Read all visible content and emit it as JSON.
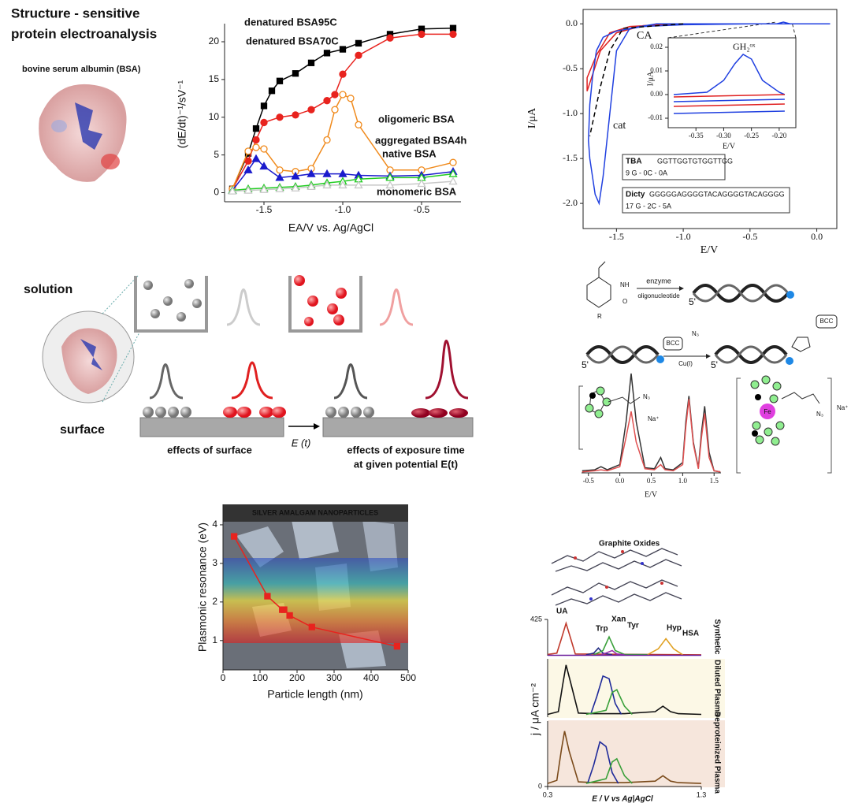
{
  "header": {
    "title_lines": [
      "Structure - sensitive",
      "protein electroanalysis"
    ],
    "subtitle": "bovine serum albumin (BSA)"
  },
  "scheme": {
    "solution": "solution",
    "surface": "surface",
    "caption_left": "effects of surface",
    "potential": "E (t)",
    "caption_right_1": "effects of exposure time",
    "caption_right_2": "at given potential E(t)"
  },
  "reaction": {
    "enzyme": "enzyme",
    "oligonucleotide": "oligonucleotide",
    "reagent": "BCC",
    "azide": "N₃",
    "catalyst": "Cu(I)",
    "counterion": "Na⁺",
    "metal": "Fe",
    "substituent": "R",
    "amine": "NH",
    "oxygen": "O",
    "five_prime": "5'"
  },
  "figure_labels": {
    "graphite_title": "Graphite Oxides"
  },
  "chart_data": [
    {
      "type": "line",
      "xlabel": "EA/V  vs. Ag/AgCl",
      "ylabel": "(dE/dt)⁻¹/sV⁻¹",
      "xlim": [
        -1.75,
        -0.25
      ],
      "ylim": [
        -1.2,
        22.4
      ],
      "xticks": [
        -1.5,
        {
          "value": -1,
          "label": "-1.0"
        },
        -0.5
      ],
      "yticks": [
        0,
        5,
        10,
        15,
        20
      ],
      "series": [
        {
          "name": "denatured BSA95C",
          "color": "#000000",
          "marker": "square",
          "filled": true,
          "x": [
            -1.7,
            -1.6,
            -1.55,
            -1.5,
            -1.45,
            -1.4,
            -1.3,
            -1.2,
            -1.1,
            -1.0,
            -0.9,
            -0.7,
            -0.5,
            -0.3
          ],
          "values": [
            0.5,
            5.2,
            8.5,
            11.5,
            13.5,
            14.8,
            15.8,
            17.2,
            18.5,
            19,
            19.8,
            21,
            21.7,
            21.8
          ]
        },
        {
          "name": "denatured BSA70C",
          "color": "#e8231e",
          "marker": "circle",
          "filled": true,
          "x": [
            -1.7,
            -1.6,
            -1.55,
            -1.5,
            -1.4,
            -1.3,
            -1.2,
            -1.1,
            -1.05,
            -1.0,
            -0.9,
            -0.7,
            -0.5,
            -0.3
          ],
          "values": [
            0.5,
            4.2,
            7,
            9.3,
            10,
            10.3,
            11,
            12.2,
            13,
            15.7,
            18.2,
            20.5,
            21,
            21
          ]
        },
        {
          "name": "oligomeric BSA",
          "color": "#f08a1c",
          "marker": "circle",
          "filled": false,
          "x": [
            -1.7,
            -1.6,
            -1.55,
            -1.5,
            -1.4,
            -1.3,
            -1.2,
            -1.1,
            -1.05,
            -1.0,
            -0.95,
            -0.9,
            -0.7,
            -0.5,
            -0.3
          ],
          "values": [
            0.5,
            5.5,
            6,
            5.8,
            3,
            2.8,
            3.2,
            7,
            11,
            13,
            12.5,
            9,
            3,
            3,
            4
          ]
        },
        {
          "name": "aggregated BSA4h",
          "color": "#1a1acc",
          "marker": "triangle",
          "filled": true,
          "x": [
            -1.7,
            -1.6,
            -1.55,
            -1.5,
            -1.4,
            -1.3,
            -1.2,
            -1.1,
            -1.0,
            -0.9,
            -0.7,
            -0.5,
            -0.3
          ],
          "values": [
            0.3,
            3,
            4.5,
            3.5,
            2,
            2.2,
            2.5,
            2.5,
            2.5,
            2.3,
            2.2,
            2.3,
            2.8
          ]
        },
        {
          "name": "native BSA",
          "color": "#22cc22",
          "marker": "triangle",
          "filled": false,
          "x": [
            -1.7,
            -1.6,
            -1.5,
            -1.4,
            -1.3,
            -1.2,
            -1.1,
            -1.0,
            -0.9,
            -0.7,
            -0.5,
            -0.3
          ],
          "values": [
            0.3,
            0.5,
            0.6,
            0.7,
            0.8,
            1,
            1.3,
            1.5,
            1.8,
            2,
            2,
            2.5
          ]
        },
        {
          "name": "monomeric BSA",
          "color": "#c8c8c8",
          "marker": "triangle",
          "filled": false,
          "x": [
            -1.7,
            -1.6,
            -1.5,
            -1.4,
            -1.3,
            -1.2,
            -1.1,
            -1.0,
            -0.9,
            -0.7,
            -0.5,
            -0.3
          ],
          "values": [
            0.2,
            0.3,
            0.4,
            0.5,
            0.6,
            0.8,
            1,
            1,
            1,
            1,
            1.2,
            1.5
          ]
        }
      ]
    },
    {
      "type": "line",
      "xlabel": "E/V",
      "ylabel": "I/μA",
      "xlim": [
        -1.75,
        0.15
      ],
      "ylim": [
        -2.28,
        0.16
      ],
      "xticks": [
        -1.5,
        {
          "value": -1,
          "label": "-1.0"
        },
        -0.5,
        {
          "value": 0,
          "label": "0.0"
        }
      ],
      "yticks": [
        {
          "value": 0,
          "label": "0.0"
        },
        -0.5,
        {
          "value": -1,
          "label": "-1.0"
        },
        -1.5,
        {
          "value": -2,
          "label": "-2.0"
        }
      ],
      "annotations": [
        "CA",
        "cat"
      ],
      "legend": [
        {
          "name": "TBA",
          "sequence": "GGTTGGTGTGGTTGG",
          "composition": "9 G - 0C - 0A",
          "color": "#e02020"
        },
        {
          "name": "Dicty",
          "sequence": "GGGGGAGGGGTACAGGGGTACAGGGG",
          "composition": "17 G - 2C - 5A",
          "color": "#2040e0"
        }
      ],
      "series": [
        {
          "color": "#e02020",
          "marker": "none",
          "x": [
            0.1,
            -1.0,
            -1.3,
            -1.5,
            -1.62,
            -1.72,
            -1.72,
            -1.65,
            -1.55,
            -1.4,
            -1.0,
            0.1
          ],
          "values": [
            0,
            0,
            -0.02,
            -0.1,
            -0.3,
            -0.75,
            -0.6,
            -0.35,
            -0.1,
            -0.03,
            0,
            0
          ]
        },
        {
          "color": "#2040e0",
          "marker": "none",
          "x": [
            0.1,
            -0.2,
            -0.25,
            -0.3,
            -1.2,
            -1.4,
            -1.5,
            -1.55,
            -1.6,
            -1.63,
            -1.66,
            -1.7,
            -1.71,
            -1.7,
            -1.68,
            -1.65,
            -1.6,
            -1.5,
            -1.3,
            -1.0,
            -0.5,
            0.1
          ],
          "values": [
            0,
            0,
            0.02,
            0,
            0,
            -0.05,
            -0.3,
            -1.0,
            -1.7,
            -2.0,
            -1.9,
            -1.5,
            -1.3,
            -0.9,
            -0.6,
            -0.3,
            -0.15,
            -0.08,
            -0.03,
            -0.01,
            0,
            0
          ]
        },
        {
          "color": "#000000",
          "marker": "none",
          "dashed": true,
          "x": [
            -1.0,
            -1.45,
            -1.55,
            -1.62,
            -1.7
          ],
          "values": [
            0,
            -0.05,
            -0.3,
            -0.7,
            -1.25
          ]
        }
      ]
    },
    {
      "type": "line",
      "xlabel": "E/V",
      "ylabel": "I/μA",
      "xlim": [
        -0.4,
        -0.17
      ],
      "ylim": [
        -0.014,
        0.024
      ],
      "xticks": [
        -0.35,
        {
          "value": -0.3,
          "label": "-0.30"
        },
        -0.25,
        {
          "value": -0.2,
          "label": "-0.20"
        }
      ],
      "yticks": [
        -0.01,
        {
          "value": 0,
          "label": "0.00"
        },
        0.01,
        0.02
      ],
      "annotations": [
        "GH₂ᵒˣ"
      ],
      "series": [
        {
          "color": "#2040e0",
          "marker": "none",
          "x": [
            -0.39,
            -0.33,
            -0.3,
            -0.28,
            -0.265,
            -0.25,
            -0.23,
            -0.2,
            -0.19
          ],
          "values": [
            0,
            0.001,
            0.006,
            0.013,
            0.017,
            0.015,
            0.006,
            0.001,
            0
          ]
        },
        {
          "color": "#e02020",
          "marker": "none",
          "x": [
            -0.39,
            -0.19
          ],
          "values": [
            -0.001,
            0
          ]
        },
        {
          "color": "#e02020",
          "marker": "none",
          "x": [
            -0.39,
            -0.19
          ],
          "values": [
            -0.005,
            -0.004
          ]
        },
        {
          "color": "#2040e0",
          "marker": "none",
          "x": [
            -0.39,
            -0.19
          ],
          "values": [
            -0.003,
            -0.002
          ]
        },
        {
          "color": "#2040e0",
          "marker": "none",
          "x": [
            -0.39,
            -0.19
          ],
          "values": [
            -0.008,
            -0.007
          ]
        }
      ]
    },
    {
      "type": "line",
      "xlabel": "E/V",
      "xlim": [
        -0.61,
        1.61
      ],
      "ylim": [
        0,
        1
      ],
      "xticks": [
        -0.5,
        {
          "value": 0,
          "label": "0.0"
        },
        0.5,
        {
          "value": 1,
          "label": "1.0"
        },
        1.5
      ],
      "x": [
        -0.6,
        -0.4,
        -0.3,
        -0.2,
        0,
        0.1,
        0.18,
        0.26,
        0.4,
        0.55,
        0.65,
        0.72,
        0.85,
        1.0,
        1.05,
        1.1,
        1.17,
        1.25,
        1.3,
        1.35,
        1.42,
        1.5,
        1.6
      ],
      "series": [
        {
          "color": "#333333",
          "marker": "none",
          "values": [
            0.02,
            0.03,
            0.06,
            0.03,
            0.08,
            0.5,
            0.97,
            0.5,
            0.05,
            0.04,
            0.15,
            0.04,
            0.03,
            0.1,
            0.5,
            0.75,
            0.3,
            0.05,
            0.4,
            0.65,
            0.2,
            0.02,
            0.01
          ]
        },
        {
          "color": "#e05050",
          "marker": "none",
          "values": [
            0.01,
            0.02,
            0.03,
            0.02,
            0.06,
            0.35,
            0.6,
            0.3,
            0.04,
            0.03,
            0.08,
            0.03,
            0.02,
            0.08,
            0.45,
            0.72,
            0.28,
            0.04,
            0.35,
            0.58,
            0.15,
            0.02,
            0.01
          ]
        }
      ]
    },
    {
      "type": "line",
      "title": "SILVER AMALGAM NANOPARTICLES",
      "xlabel": "Particle length (nm)",
      "ylabel": "Plasmonic resonance (eV)",
      "xlim": [
        0,
        500
      ],
      "ylim": [
        0.24,
        4.53
      ],
      "xticks": [
        0,
        100,
        200,
        300,
        400,
        500
      ],
      "yticks": [
        1,
        2,
        3,
        4
      ],
      "series": [
        {
          "color": "#e8231e",
          "marker": "square",
          "filled": true,
          "x": [
            30,
            120,
            160,
            165,
            180,
            240,
            470
          ],
          "values": [
            3.7,
            2.15,
            1.8,
            1.8,
            1.65,
            1.35,
            0.85
          ]
        }
      ]
    },
    {
      "type": "line",
      "title": "Synthetic",
      "xlim": [
        0.3,
        1.3
      ],
      "ylim": [
        0,
        425
      ],
      "yticks": [
        425
      ],
      "series": [
        {
          "name": "UA",
          "color": "#c0392b",
          "marker": "none",
          "x": [
            0.3,
            0.36,
            0.39,
            0.42,
            0.45,
            0.48,
            1.3
          ],
          "values": [
            15,
            30,
            200,
            380,
            200,
            20,
            10
          ]
        },
        {
          "name": "Trp",
          "color": "#1f2a80",
          "marker": "none",
          "x": [
            0.55,
            0.6,
            0.63,
            0.66,
            0.72
          ],
          "values": [
            10,
            30,
            90,
            30,
            10
          ]
        },
        {
          "name": "Xan",
          "color": "#3aa03a",
          "marker": "none",
          "x": [
            0.6,
            0.66,
            0.7,
            0.74,
            0.8,
            0.95
          ],
          "values": [
            10,
            60,
            220,
            60,
            15,
            12
          ]
        },
        {
          "name": "Tyr",
          "color": "#9b2fae",
          "marker": "none",
          "x": [
            0.65,
            0.72,
            0.75,
            0.8
          ],
          "values": [
            10,
            60,
            20,
            10
          ]
        },
        {
          "name": "Hyp",
          "color": "#e0a020",
          "marker": "none",
          "x": [
            0.95,
            1.02,
            1.07,
            1.12,
            1.18
          ],
          "values": [
            12,
            80,
            200,
            80,
            10
          ]
        },
        {
          "name": "HSA",
          "color": "#6a1b9a",
          "marker": "none",
          "x": [
            0.3,
            1.3
          ],
          "values": [
            5,
            5
          ]
        }
      ]
    },
    {
      "type": "line",
      "title": "Diluted Plasma",
      "ylabel": "j / μA cm⁻²",
      "xlim": [
        0.3,
        1.3
      ],
      "ylim": [
        0,
        425
      ],
      "series": [
        {
          "color": "#111111",
          "marker": "none",
          "x": [
            0.3,
            0.37,
            0.4,
            0.42,
            0.45,
            0.5,
            0.6,
            0.8,
            1.0,
            1.05,
            1.1,
            1.15,
            1.3
          ],
          "values": [
            20,
            40,
            250,
            380,
            250,
            30,
            25,
            25,
            40,
            80,
            40,
            25,
            20
          ]
        },
        {
          "color": "#1f2a9a",
          "marker": "none",
          "x": [
            0.58,
            0.62,
            0.66,
            0.7,
            0.74,
            0.78
          ],
          "values": [
            20,
            150,
            300,
            280,
            100,
            20
          ]
        },
        {
          "color": "#3aa03a",
          "marker": "none",
          "x": [
            0.55,
            0.68,
            0.72,
            0.75,
            0.8,
            0.85
          ],
          "values": [
            20,
            50,
            180,
            200,
            80,
            20
          ]
        }
      ]
    },
    {
      "type": "line",
      "title": "Deproteinized Plasma",
      "xlabel": "E / V vs Ag|AgCl",
      "xlim": [
        0.3,
        1.3
      ],
      "ylim": [
        0,
        425
      ],
      "xticks": [
        0.3,
        1.3
      ],
      "yticks": [
        0
      ],
      "series": [
        {
          "color": "#7a4a1a",
          "marker": "none",
          "x": [
            0.3,
            0.36,
            0.39,
            0.41,
            0.44,
            0.5,
            0.6,
            0.8,
            1.0,
            1.05,
            1.1,
            1.15,
            1.3
          ],
          "values": [
            20,
            40,
            240,
            360,
            230,
            30,
            25,
            25,
            35,
            70,
            35,
            25,
            20
          ]
        },
        {
          "color": "#1f2a9a",
          "marker": "none",
          "x": [
            0.56,
            0.6,
            0.64,
            0.68,
            0.72,
            0.76
          ],
          "values": [
            20,
            140,
            290,
            260,
            90,
            20
          ]
        },
        {
          "color": "#3aa03a",
          "marker": "none",
          "x": [
            0.55,
            0.68,
            0.72,
            0.75,
            0.8,
            0.85
          ],
          "values": [
            20,
            50,
            160,
            180,
            70,
            20
          ]
        }
      ]
    }
  ]
}
